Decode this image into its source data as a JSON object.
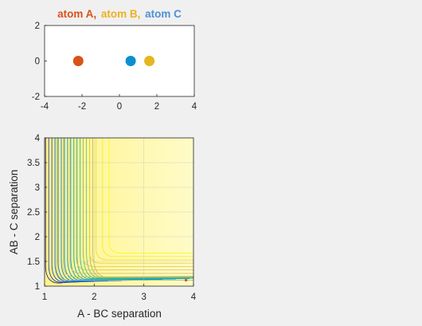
{
  "legend": {
    "atom_a": {
      "label": "atom A,",
      "color": "#d95319"
    },
    "atom_b": {
      "label": "atom B,",
      "color": "#edb120"
    },
    "atom_c": {
      "label": "atom C",
      "color": "#4d90d6"
    }
  },
  "chart_data": [
    {
      "type": "scatter",
      "title": "atom A,  atom B,  atom C",
      "xlim": [
        -4,
        4
      ],
      "ylim": [
        -2,
        2
      ],
      "xticks": [
        "-4",
        "-2",
        "0",
        "2",
        "4"
      ],
      "yticks": [
        "-2",
        "0",
        "2"
      ],
      "grid": false,
      "series": [
        {
          "name": "atom A",
          "color": "#d95319",
          "x": [
            -2.2
          ],
          "y": [
            0
          ]
        },
        {
          "name": "atom C",
          "color": "#0c8fd1",
          "x": [
            0.6
          ],
          "y": [
            0
          ]
        },
        {
          "name": "atom B",
          "color": "#e6b51f",
          "x": [
            1.6
          ],
          "y": [
            0
          ]
        }
      ]
    },
    {
      "type": "contour",
      "xlabel": "A - BC separation",
      "ylabel": "AB - C separation",
      "xlim": [
        1,
        4
      ],
      "ylim": [
        1,
        4
      ],
      "xticks": [
        "1",
        "2",
        "3",
        "4"
      ],
      "yticks": [
        "1",
        "1.5",
        "2",
        "2.5",
        "3",
        "3.5",
        "4"
      ],
      "grid": true,
      "colormap": "parula",
      "marker": {
        "x": 3.85,
        "y": 1.12,
        "color": "#d95319"
      }
    }
  ]
}
